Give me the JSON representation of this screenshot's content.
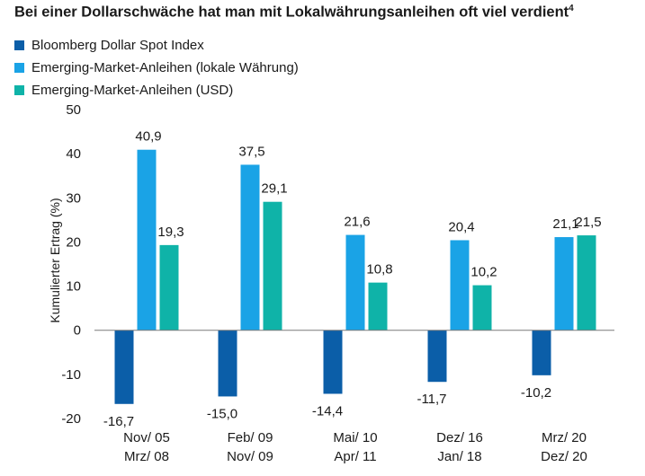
{
  "chart_data": {
    "type": "bar",
    "title": "Bei einer Dollarschwäche hat man mit Lokalwährungsanleihen oft viel verdient",
    "title_superscript": "4",
    "ylabel": "Kumulierter Ertrag (%)",
    "ylim": [
      -20,
      50
    ],
    "yticks": [
      -20,
      -10,
      0,
      10,
      20,
      30,
      40,
      50
    ],
    "categories": [
      [
        "Nov/ 05",
        "Mrz/ 08"
      ],
      [
        "Feb/ 09",
        "Nov/ 09"
      ],
      [
        "Mai/ 10",
        "Apr/ 11"
      ],
      [
        "Dez/ 16",
        "Jan/ 18"
      ],
      [
        "Mrz/ 20",
        "Dez/ 20"
      ]
    ],
    "series": [
      {
        "name": "Bloomberg Dollar Spot Index",
        "color": "#0b5ea8",
        "values": [
          -16.7,
          -15.0,
          -14.4,
          -11.7,
          -10.2
        ],
        "labels": [
          "-16,7",
          "-15,0",
          "-14,4",
          "-11,7",
          "-10,2"
        ]
      },
      {
        "name": "Emerging-Market-Anleihen (lokale Währung)",
        "color": "#1aa3e6",
        "values": [
          40.9,
          37.5,
          21.6,
          20.4,
          21.1
        ],
        "labels": [
          "40,9",
          "37,5",
          "21,6",
          "20,4",
          "21,1"
        ]
      },
      {
        "name": "Emerging-Market-Anleihen (USD)",
        "color": "#0fb3a8",
        "values": [
          19.3,
          29.1,
          10.8,
          10.2,
          21.5
        ],
        "labels": [
          "19,3",
          "29,1",
          "10,8",
          "10,2",
          "21,5"
        ]
      }
    ]
  }
}
